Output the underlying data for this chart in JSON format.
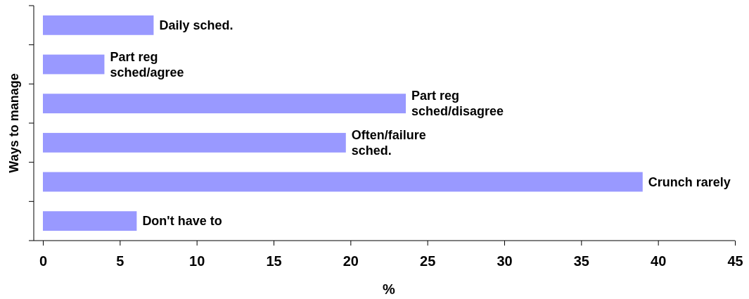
{
  "chart_data": {
    "type": "bar",
    "orientation": "horizontal",
    "xlabel": "%",
    "ylabel": "Ways to manage",
    "categories": [
      "Daily sched.",
      "Part reg sched/agree",
      "Part reg sched/disagree",
      "Often/failure sched.",
      "Crunch rarely",
      "Don't have to"
    ],
    "values": [
      7.2,
      4.0,
      23.6,
      19.7,
      39.0,
      6.1
    ],
    "color": "#9999ff",
    "xlim": [
      0,
      45
    ],
    "xticks": [
      0,
      5,
      10,
      15,
      20,
      25,
      30,
      35,
      40,
      45
    ]
  }
}
